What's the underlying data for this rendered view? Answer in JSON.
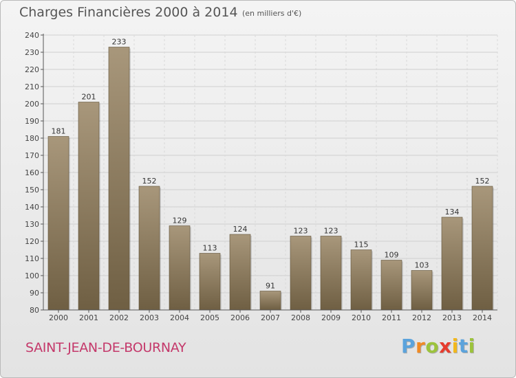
{
  "header": {
    "title": "Charges Financières 2000 à 2014",
    "subtitle": "(en milliers d'€)"
  },
  "footer": {
    "town": "SAINT-JEAN-DE-BOURNAY",
    "logo_letters": [
      "P",
      "r",
      "o",
      "x",
      "i",
      "t",
      "i"
    ]
  },
  "colors": {
    "bar": "#8c7a5c",
    "grid": "#cfcfcf",
    "town": "#c4386a",
    "logo": [
      "#5ba3dc",
      "#f08a24",
      "#9cc33c",
      "#e63c2e",
      "#f2b81c",
      "#5ba3dc",
      "#9cc33c"
    ]
  },
  "chart_data": {
    "type": "bar",
    "categories": [
      "2000",
      "2001",
      "2002",
      "2003",
      "2004",
      "2005",
      "2006",
      "2007",
      "2008",
      "2009",
      "2010",
      "2011",
      "2012",
      "2013",
      "2014"
    ],
    "values": [
      181,
      201,
      233,
      152,
      129,
      113,
      124,
      91,
      123,
      123,
      115,
      109,
      103,
      134,
      152
    ],
    "title": "Charges Financières 2000 à 2014",
    "subtitle": "(en milliers d'€)",
    "ylim": [
      80,
      240
    ],
    "yticks": [
      80,
      90,
      100,
      110,
      120,
      130,
      140,
      150,
      160,
      170,
      180,
      190,
      200,
      210,
      220,
      230,
      240
    ],
    "grid": true,
    "data_labels": true
  }
}
